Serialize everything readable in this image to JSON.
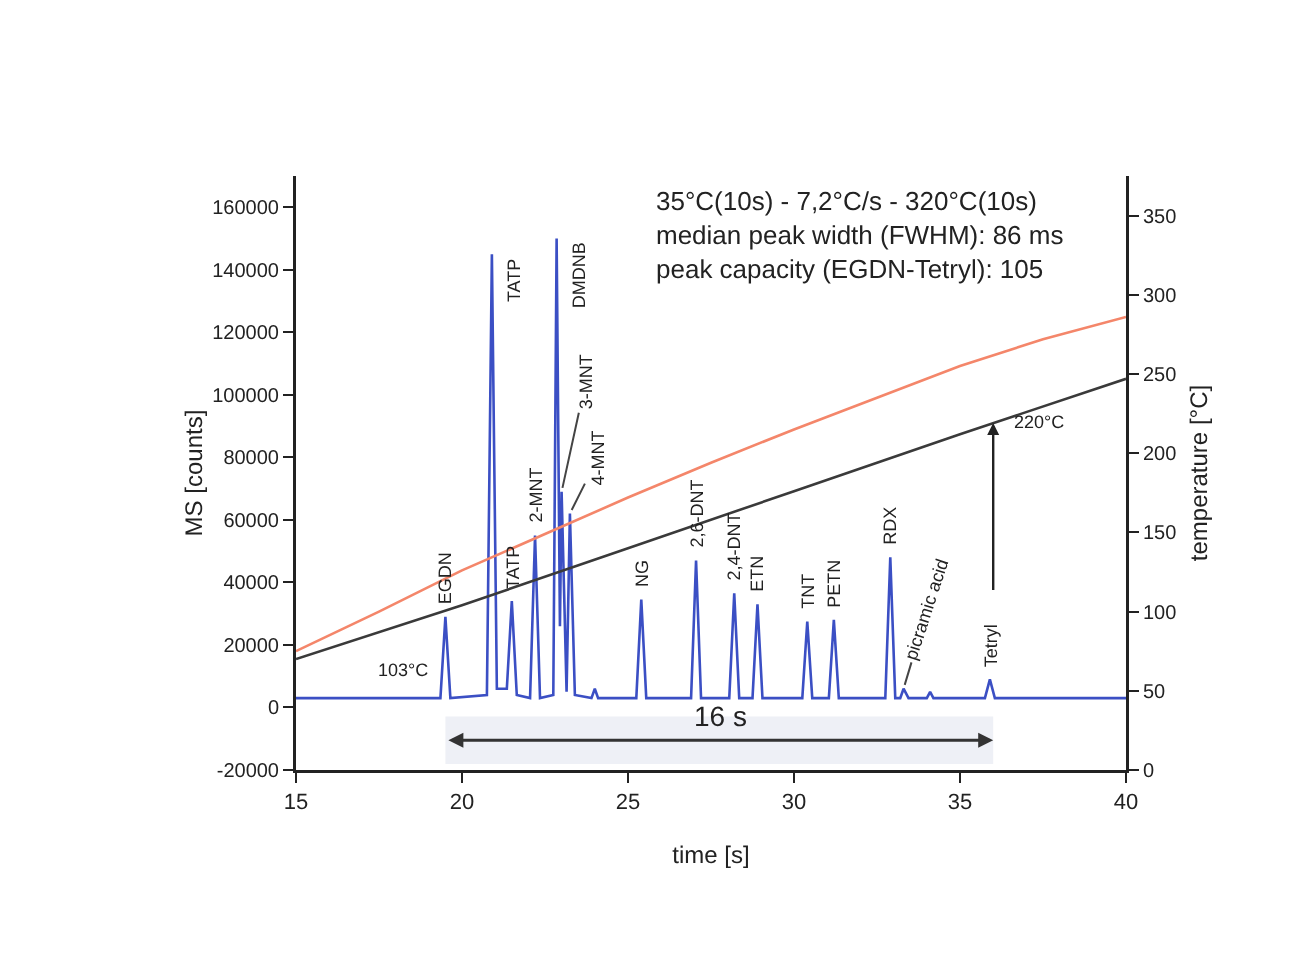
{
  "chart_data": {
    "type": "line",
    "xlabel": "time [s]",
    "ylabel": "MS [counts]",
    "y2label": "temperature [°C]",
    "xlim": [
      15,
      40
    ],
    "xticks": [
      15,
      20,
      25,
      30,
      35,
      40
    ],
    "ylim": [
      -20000,
      170000
    ],
    "yticks": [
      -20000,
      0,
      20000,
      40000,
      60000,
      80000,
      100000,
      120000,
      140000,
      160000
    ],
    "y2lim": [
      0,
      375
    ],
    "y2ticks": [
      0,
      50,
      100,
      150,
      200,
      250,
      300,
      350
    ],
    "grid": false,
    "marker": "none",
    "line_style": "solid",
    "series": [
      {
        "color": "#3b4fc4",
        "x": [
          15,
          19.35,
          19.5,
          19.65,
          20.75,
          20.9,
          21.05,
          21.35,
          21.5,
          21.65,
          22.05,
          22.2,
          22.35,
          22.75,
          22.85,
          22.95,
          23.0,
          23.15,
          23.25,
          23.4,
          23.9,
          24.0,
          24.1,
          25.25,
          25.4,
          25.55,
          26.9,
          27.05,
          27.2,
          28.05,
          28.2,
          28.35,
          28.75,
          28.9,
          29.05,
          30.25,
          30.4,
          30.55,
          31.05,
          31.2,
          31.35,
          32.75,
          32.9,
          33.05,
          33.2,
          33.3,
          33.45,
          34.0,
          34.1,
          34.2,
          35.75,
          35.9,
          36.05,
          40
        ],
        "values": [
          3000,
          3000,
          29000,
          3000,
          4000,
          145000,
          6000,
          6000,
          34000,
          4000,
          3000,
          55000,
          3000,
          4000,
          150000,
          26000,
          69000,
          5000,
          62000,
          4000,
          3000,
          6000,
          3000,
          3000,
          34500,
          3000,
          3000,
          47000,
          3000,
          3000,
          36500,
          3000,
          3000,
          33000,
          3000,
          3000,
          27500,
          3000,
          3000,
          28000,
          3000,
          3000,
          48000,
          3000,
          3000,
          6000,
          3000,
          3000,
          5000,
          3000,
          3000,
          9000,
          3000,
          3000
        ]
      },
      {
        "color": "#f4866a",
        "axis": "y2",
        "x": [
          15,
          17.5,
          20,
          22.5,
          25,
          27.5,
          30,
          32.5,
          35,
          37.5,
          40
        ],
        "values": [
          75,
          100,
          126,
          149,
          172,
          194,
          215,
          235,
          255,
          272,
          286
        ]
      },
      {
        "color": "#3a3a3a",
        "axis": "y2",
        "x": [
          15,
          20,
          25,
          30,
          35,
          40
        ],
        "values": [
          70,
          104,
          140,
          176,
          212,
          247
        ]
      }
    ],
    "bands": [
      {
        "axis": "x",
        "from": 19.5,
        "to": 36,
        "label": "16 s"
      }
    ],
    "annotations": [
      "35°C(10s) - 7,2°C/s - 320°C(10s)\nmedian peak width (FWHM): 86 ms\npeak capacity (EGDN-Tetryl): 105",
      "103°C",
      {
        "text": "220°C",
        "x": 36,
        "y": 91000
      },
      {
        "text": "EGDN",
        "x": 19.5,
        "y": 29000
      },
      {
        "text": "TATP",
        "x": 20.9,
        "y": 145000
      },
      {
        "text": "TATP",
        "x": 21.5,
        "y": 34000
      },
      {
        "text": "2-MNT",
        "x": 22.2,
        "y": 55000
      },
      {
        "text": "DMDNB",
        "x": 22.85,
        "y": 150000
      },
      {
        "text": "3-MNT",
        "x": 23.0,
        "y": 69000
      },
      {
        "text": "4-MNT",
        "x": 23.25,
        "y": 62000
      },
      {
        "text": "NG",
        "x": 25.4,
        "y": 34500
      },
      {
        "text": "2,6-DNT",
        "x": 27.05,
        "y": 47000
      },
      {
        "text": "2,4-DNT",
        "x": 28.2,
        "y": 36500
      },
      {
        "text": "ETN",
        "x": 28.9,
        "y": 33000
      },
      {
        "text": "TNT",
        "x": 30.4,
        "y": 27500
      },
      {
        "text": "PETN",
        "x": 31.2,
        "y": 28000
      },
      {
        "text": "RDX",
        "x": 32.9,
        "y": 48000
      },
      {
        "text": "picramic acid",
        "x": 33.3,
        "y": 6000
      },
      {
        "text": "Tetryl",
        "x": 35.9,
        "y": 9000
      }
    ]
  }
}
